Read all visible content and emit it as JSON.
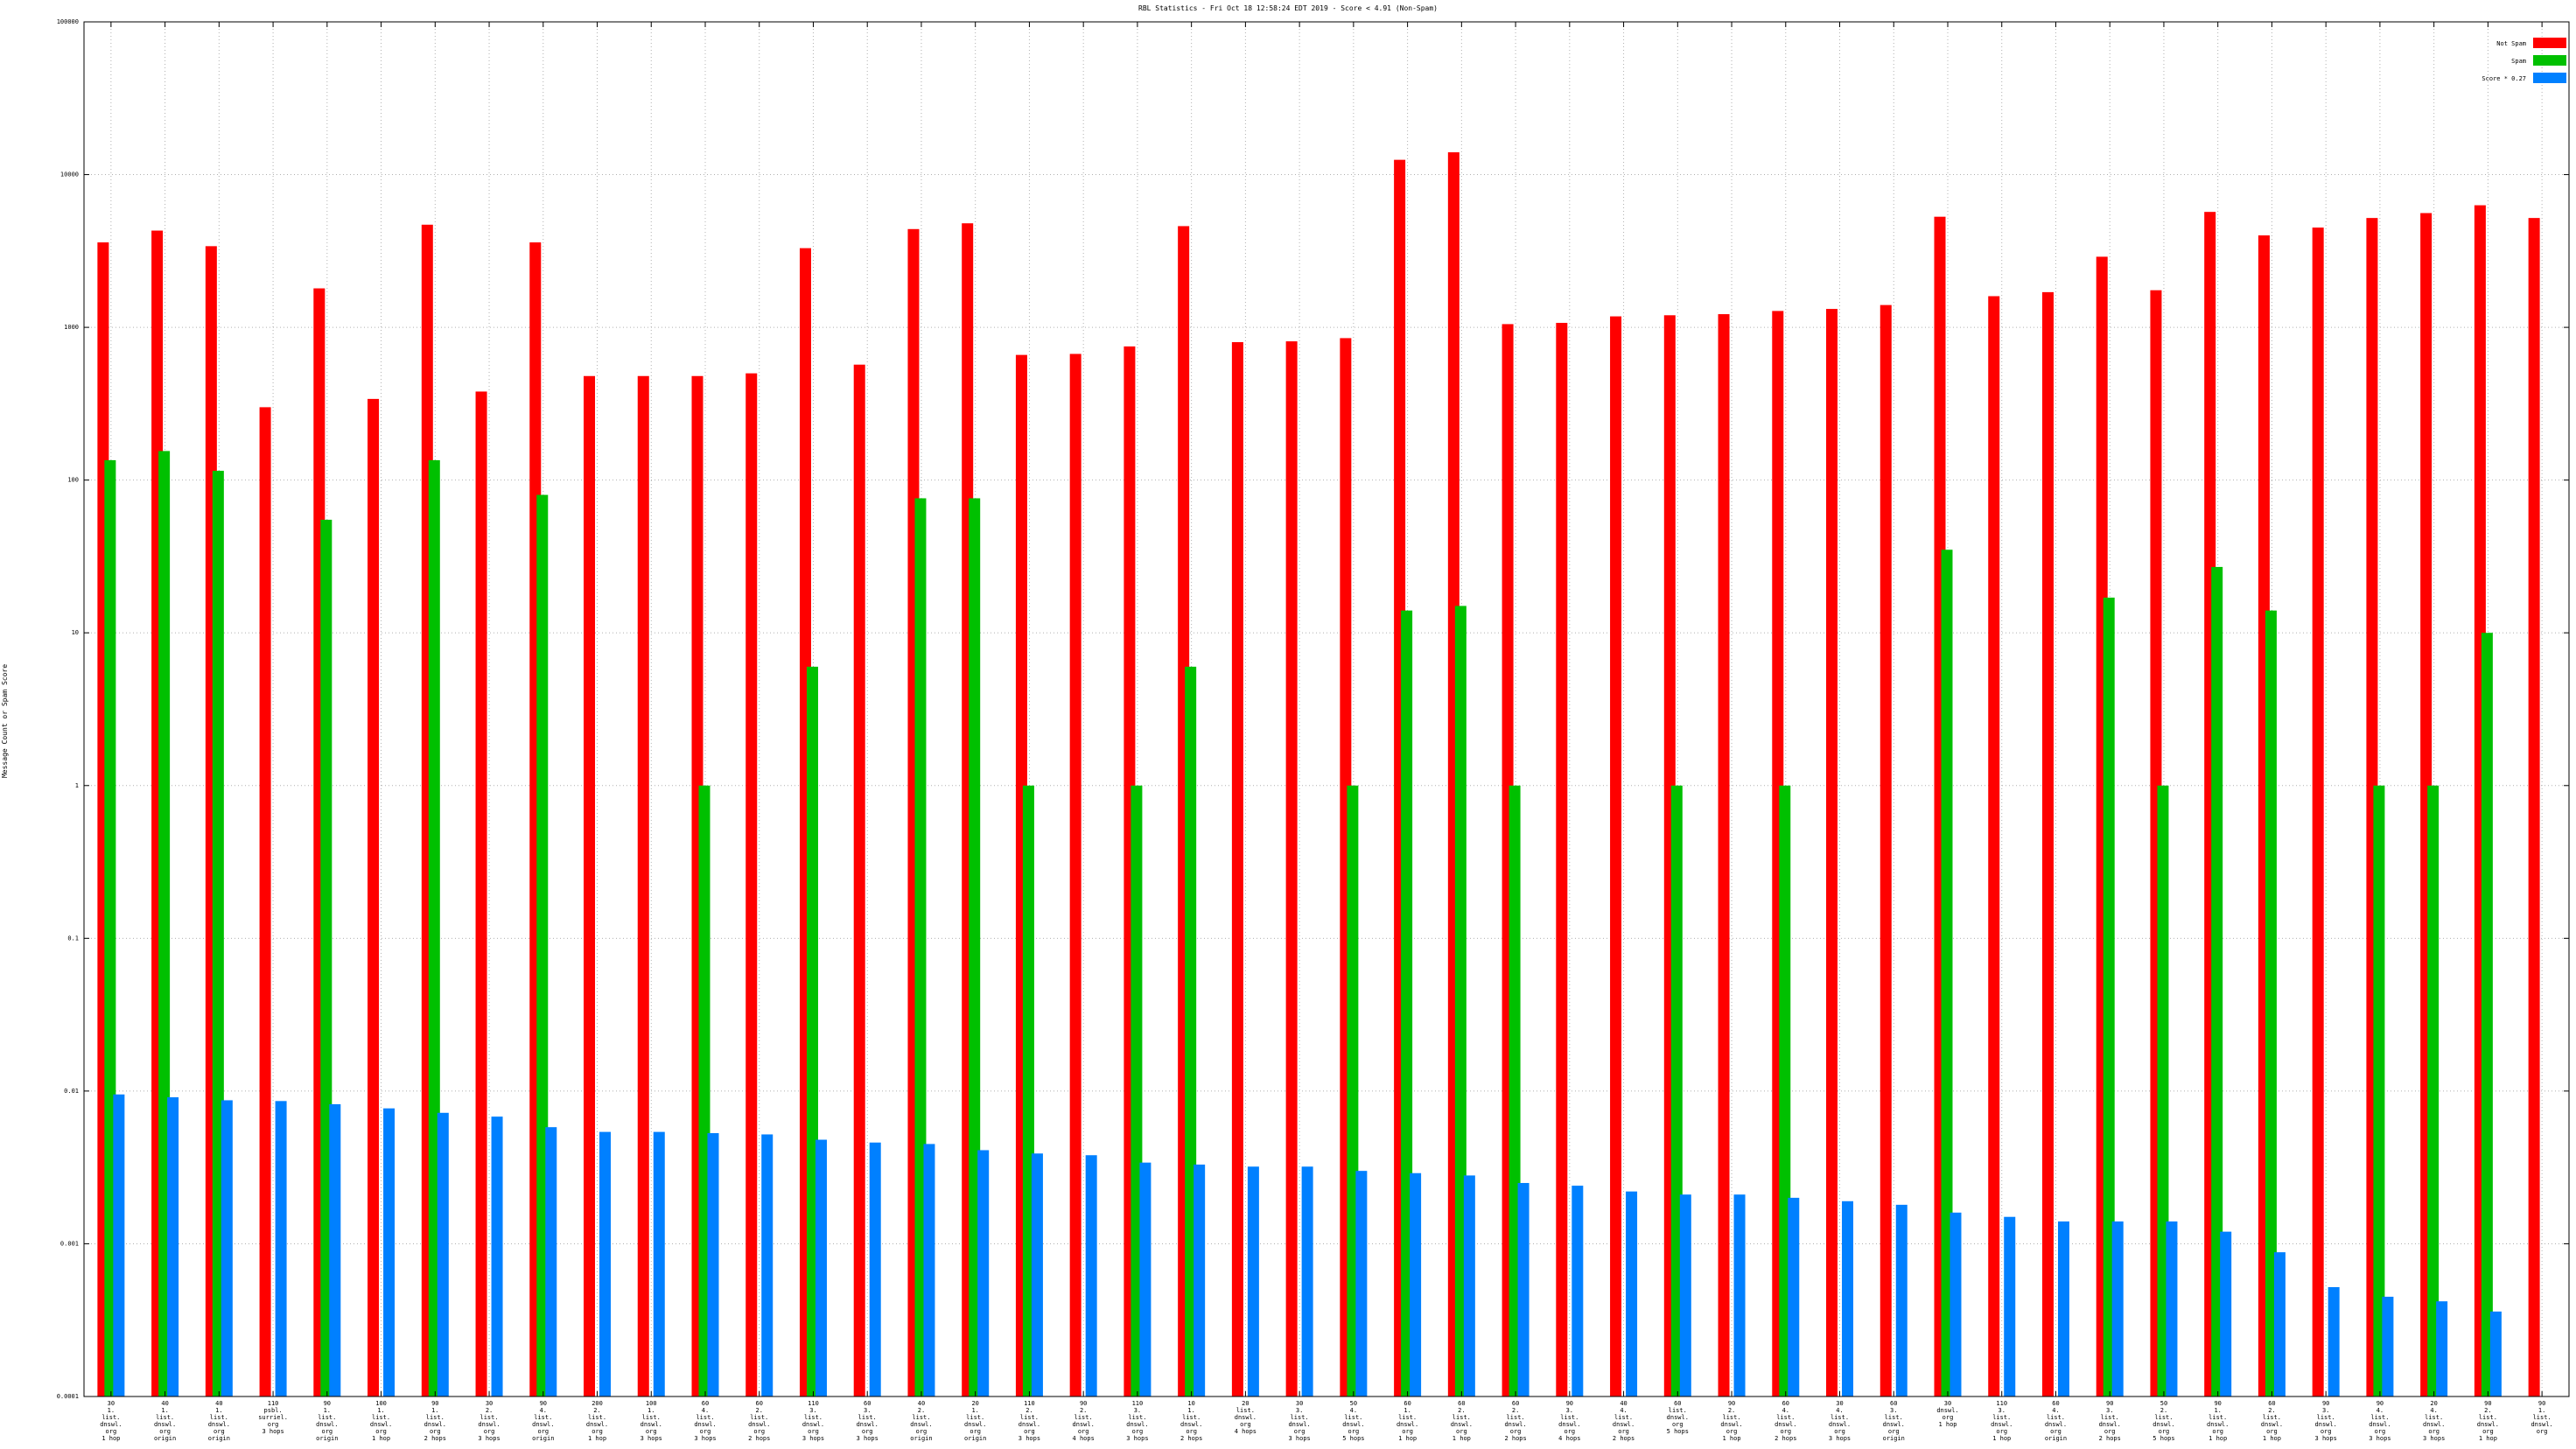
{
  "chart_data": {
    "type": "bar",
    "title": "RBL Statistics - Fri Oct 18 12:58:24 EDT 2019 - Score < 4.91 (Non-Spam)",
    "xlabel": "",
    "ylabel": "Message Count or Spam Score",
    "yscale": "log",
    "ylim": [
      0.0001,
      100000
    ],
    "grid": true,
    "legend_position": "top-right",
    "y_ticks": [
      "0.0001",
      "0.001",
      "0.01",
      "0.1",
      "1",
      "10",
      "100",
      "1000",
      "10000",
      "100000"
    ],
    "categories": [
      [
        "30",
        "1.",
        "list.",
        "dnswl.",
        "org",
        "1 hop"
      ],
      [
        "40",
        "1.",
        "list.",
        "dnswl.",
        "org",
        "origin"
      ],
      [
        "40",
        "1.",
        "list.",
        "dnswl.",
        "org",
        "origin"
      ],
      [
        "110",
        "psbl.",
        "surriel.",
        "org",
        "3 hops"
      ],
      [
        "90",
        "1.",
        "list.",
        "dnswl.",
        "org",
        "origin"
      ],
      [
        "100",
        "1.",
        "list.",
        "dnswl.",
        "org",
        "1 hop"
      ],
      [
        "90",
        "1.",
        "list.",
        "dnswl.",
        "org",
        "2 hops"
      ],
      [
        "30",
        "2.",
        "list.",
        "dnswl.",
        "org",
        "3 hops"
      ],
      [
        "90",
        "4.",
        "list.",
        "dnswl.",
        "org",
        "origin"
      ],
      [
        "200",
        "2.",
        "list.",
        "dnswl.",
        "org",
        "1 hop"
      ],
      [
        "100",
        "1.",
        "list.",
        "dnswl.",
        "org",
        "3 hops"
      ],
      [
        "60",
        "4.",
        "list.",
        "dnswl.",
        "org",
        "3 hops"
      ],
      [
        "60",
        "2.",
        "list.",
        "dnswl.",
        "org",
        "2 hops"
      ],
      [
        "110",
        "3.",
        "list.",
        "dnswl.",
        "org",
        "3 hops"
      ],
      [
        "60",
        "3.",
        "list.",
        "dnswl.",
        "org",
        "3 hops"
      ],
      [
        "40",
        "2.",
        "list.",
        "dnswl.",
        "org",
        "origin"
      ],
      [
        "20",
        "1.",
        "list.",
        "dnswl.",
        "org",
        "origin"
      ],
      [
        "110",
        "2.",
        "list.",
        "dnswl.",
        "org",
        "3 hops"
      ],
      [
        "90",
        "2.",
        "list.",
        "dnswl.",
        "org",
        "4 hops"
      ],
      [
        "110",
        "3.",
        "list.",
        "dnswl.",
        "org",
        "3 hops"
      ],
      [
        "10",
        "1.",
        "list.",
        "dnswl.",
        "org",
        "2 hops"
      ],
      [
        "20",
        "list.",
        "dnswl.",
        "org",
        "4 hops"
      ],
      [
        "30",
        "3.",
        "list.",
        "dnswl.",
        "org",
        "3 hops"
      ],
      [
        "50",
        "4.",
        "list.",
        "dnswl.",
        "org",
        "5 hops"
      ],
      [
        "60",
        "1.",
        "list.",
        "dnswl.",
        "org",
        "1 hop"
      ],
      [
        "60",
        "2.",
        "list.",
        "dnswl.",
        "org",
        "1 hop"
      ],
      [
        "60",
        "2.",
        "list.",
        "dnswl.",
        "org",
        "2 hops"
      ],
      [
        "90",
        "3.",
        "list.",
        "dnswl.",
        "org",
        "4 hops"
      ],
      [
        "40",
        "4.",
        "list.",
        "dnswl.",
        "org",
        "2 hops"
      ],
      [
        "60",
        "list.",
        "dnswl.",
        "org",
        "5 hops"
      ],
      [
        "90",
        "2.",
        "list.",
        "dnswl.",
        "org",
        "1 hop"
      ],
      [
        "60",
        "4.",
        "list.",
        "dnswl.",
        "org",
        "2 hops"
      ],
      [
        "30",
        "4.",
        "list.",
        "dnswl.",
        "org",
        "3 hops"
      ],
      [
        "60",
        "3.",
        "list.",
        "dnswl.",
        "org",
        "origin"
      ],
      [
        "30",
        "dnswl.",
        "org",
        "1 hop"
      ],
      [
        "110",
        "3.",
        "list.",
        "dnswl.",
        "org",
        "1 hop"
      ],
      [
        "60",
        "4.",
        "list.",
        "dnswl.",
        "org",
        "origin"
      ],
      [
        "90",
        "3.",
        "list.",
        "dnswl.",
        "org",
        "2 hops"
      ],
      [
        "50",
        "2.",
        "list.",
        "dnswl.",
        "org",
        "5 hops"
      ],
      [
        "90",
        "1.",
        "list.",
        "dnswl.",
        "org",
        "1 hop"
      ],
      [
        "60",
        "2.",
        "list.",
        "dnswl.",
        "org",
        "1 hop"
      ],
      [
        "90",
        "3.",
        "list.",
        "dnswl.",
        "org",
        "3 hops"
      ],
      [
        "90",
        "4.",
        "list.",
        "dnswl.",
        "org",
        "3 hops"
      ],
      [
        "20",
        "4.",
        "list.",
        "dnswl.",
        "org",
        "3 hops"
      ],
      [
        "90",
        "2.",
        "list.",
        "dnswl.",
        "org",
        "1 hop"
      ],
      [
        "90",
        "1.",
        "list.",
        "dnswl.",
        "org",
        ""
      ]
    ],
    "series": [
      {
        "name": "Not Spam",
        "color": "#ff0000",
        "values": [
          3600,
          4300,
          3400,
          300,
          1800,
          340,
          4700,
          380,
          3600,
          480,
          480,
          480,
          500,
          3300,
          570,
          4400,
          4800,
          660,
          670,
          750,
          4600,
          800,
          810,
          850,
          12500,
          14000,
          1050,
          1070,
          1180,
          1200,
          1220,
          1280,
          1320,
          1400,
          5300,
          1600,
          1700,
          2900,
          1750,
          5700,
          4000,
          4500,
          5200,
          5600,
          6300,
          5200
        ]
      },
      {
        "name": "Spam",
        "color": "#00c000",
        "values": [
          135,
          155,
          115,
          null,
          55,
          null,
          135,
          null,
          80,
          null,
          null,
          1,
          null,
          6,
          null,
          76,
          76,
          1,
          null,
          1,
          6,
          null,
          null,
          1,
          14,
          15,
          1,
          null,
          null,
          1,
          null,
          1,
          null,
          null,
          35,
          null,
          null,
          17,
          1,
          27,
          14,
          null,
          1,
          1,
          10,
          null
        ]
      },
      {
        "name": "Score * 0.27",
        "color": "#0080ff",
        "values": [
          0.0095,
          0.0091,
          0.0087,
          0.0086,
          0.0082,
          0.0077,
          0.0072,
          0.0068,
          0.0058,
          0.0054,
          0.0054,
          0.0053,
          0.0052,
          0.0048,
          0.0046,
          0.0045,
          0.0041,
          0.0039,
          0.0038,
          0.0034,
          0.0033,
          0.0032,
          0.0032,
          0.003,
          0.0029,
          0.0028,
          0.0025,
          0.0024,
          0.0022,
          0.0021,
          0.0021,
          0.002,
          0.0019,
          0.0018,
          0.0016,
          0.0015,
          0.0014,
          0.0014,
          0.0014,
          0.0012,
          0.00088,
          0.00052,
          0.00045,
          0.00042,
          0.00036,
          null
        ]
      }
    ]
  }
}
